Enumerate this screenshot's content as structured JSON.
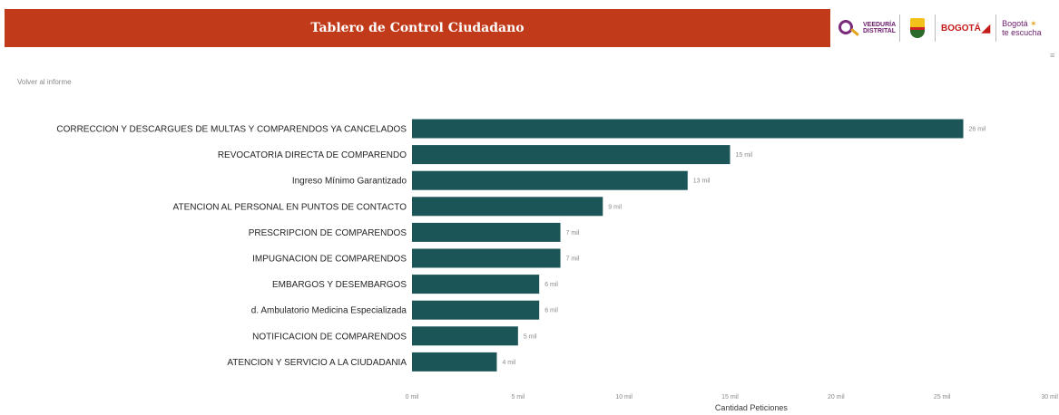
{
  "header": {
    "title": "Tablero de Control Ciudadano"
  },
  "logos": {
    "veeduria_line1": "VEEDURÍA",
    "veeduria_line2": "DISTRITAL",
    "bogota": "BOGOTÁ",
    "escucha_line1": "Bogotá",
    "escucha_line2": "te escucha"
  },
  "nav": {
    "back_link": "Volver al informe"
  },
  "colors": {
    "header_bg": "#c13a1a",
    "bar": "#1b5558"
  },
  "chart_data": {
    "type": "bar",
    "orientation": "horizontal",
    "categories": [
      "CORRECCION Y DESCARGUES DE MULTAS Y COMPARENDOS YA CANCELADOS",
      "REVOCATORIA DIRECTA DE COMPARENDO",
      "Ingreso Mínimo Garantizado",
      "ATENCION AL PERSONAL EN PUNTOS DE CONTACTO",
      "PRESCRIPCION DE COMPARENDOS",
      "IMPUGNACION DE COMPARENDOS",
      "EMBARGOS Y DESEMBARGOS",
      "d. Ambulatorio Medicina Especializada",
      "NOTIFICACION DE COMPARENDOS",
      "ATENCION Y SERVICIO A LA CIUDADANIA"
    ],
    "values": [
      26000,
      15000,
      13000,
      9000,
      7000,
      7000,
      6000,
      6000,
      5000,
      4000
    ],
    "data_labels": [
      "26 mil",
      "15 mil",
      "13 mil",
      "9 mil",
      "7 mil",
      "7 mil",
      "6 mil",
      "6 mil",
      "5 mil",
      "4 mil"
    ],
    "xticks": [
      0,
      5000,
      10000,
      15000,
      20000,
      25000,
      30000
    ],
    "xtick_labels": [
      "0 mil",
      "5 mil",
      "10 mil",
      "15 mil",
      "20 mil",
      "25 mil",
      "30 mil"
    ],
    "xlim": [
      0,
      30000
    ],
    "xlabel": "Cantidad Peticiones",
    "grid": false
  }
}
